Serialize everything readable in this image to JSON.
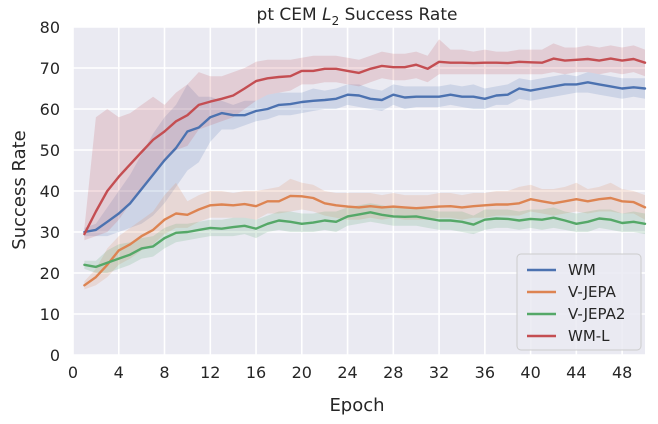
{
  "chart_data": {
    "type": "line",
    "title_prefix": "pt CEM ",
    "title_var": "L",
    "title_sub": "2",
    "title_suffix": " Success Rate",
    "xlabel": "Epoch",
    "ylabel": "Success Rate",
    "xlim": [
      0,
      50
    ],
    "ylim": [
      0,
      80
    ],
    "xticks": [
      0,
      4,
      8,
      12,
      16,
      20,
      24,
      28,
      32,
      36,
      40,
      44,
      48
    ],
    "yticks": [
      0,
      10,
      20,
      30,
      40,
      50,
      60,
      70,
      80
    ],
    "grid": true,
    "legend_position": "lower-right",
    "series": [
      {
        "name": "WM",
        "color": "#4c72b0",
        "x": [
          1,
          2,
          3,
          4,
          5,
          6,
          7,
          8,
          9,
          10,
          11,
          12,
          13,
          14,
          15,
          16,
          17,
          18,
          19,
          20,
          21,
          22,
          23,
          24,
          25,
          26,
          27,
          28,
          29,
          30,
          31,
          32,
          33,
          34,
          35,
          36,
          37,
          38,
          39,
          40,
          41,
          42,
          43,
          44,
          45,
          46,
          47,
          48,
          49,
          50
        ],
        "values": [
          30,
          30.5,
          32.5,
          34.5,
          37,
          40.5,
          44,
          47.5,
          50.5,
          54.5,
          55.5,
          58,
          59,
          58.5,
          58.5,
          59.5,
          60,
          61,
          61.2,
          61.7,
          62,
          62.2,
          62.5,
          63.5,
          63.3,
          62.5,
          62.2,
          63.5,
          62.8,
          63,
          63,
          63,
          63.5,
          63,
          63,
          62.5,
          63.3,
          63.5,
          65,
          64.5,
          65,
          65.5,
          66,
          66,
          66.5,
          66,
          65.5,
          65,
          65.3,
          65
        ],
        "lower": [
          29,
          29,
          29,
          30,
          31,
          32,
          34,
          37,
          41,
          45,
          47,
          52,
          55,
          55,
          56,
          57,
          57.5,
          58.5,
          58.5,
          59,
          59.5,
          60,
          60,
          61,
          60.5,
          60,
          59.5,
          61,
          60,
          60.5,
          60.5,
          60.5,
          61,
          60.5,
          60,
          60,
          61,
          61,
          62.5,
          62,
          62.5,
          63,
          63.5,
          64,
          64,
          63.5,
          63,
          62.5,
          63,
          62.5
        ],
        "upper": [
          31,
          32,
          36,
          40,
          44,
          49,
          54,
          58,
          61,
          66,
          63,
          63,
          62,
          61,
          62,
          62,
          63.5,
          64,
          64,
          64,
          65,
          64.5,
          65,
          66,
          66,
          65,
          64.5,
          66,
          65.5,
          65.5,
          65.5,
          65.5,
          66,
          65.5,
          66,
          65,
          65.5,
          66,
          67.5,
          67,
          67.5,
          68,
          68.5,
          68,
          69,
          68.5,
          68,
          67.5,
          67.5,
          67.5
        ]
      },
      {
        "name": "V-JEPA",
        "color": "#dd8452",
        "x": [
          1,
          2,
          3,
          4,
          5,
          6,
          7,
          8,
          9,
          10,
          11,
          12,
          13,
          14,
          15,
          16,
          17,
          18,
          19,
          20,
          21,
          22,
          23,
          24,
          25,
          26,
          27,
          28,
          29,
          30,
          31,
          32,
          33,
          34,
          35,
          36,
          37,
          38,
          39,
          40,
          41,
          42,
          43,
          44,
          45,
          46,
          47,
          48,
          49,
          50
        ],
        "values": [
          17,
          19,
          22,
          25.5,
          27,
          29,
          30.5,
          33,
          34.5,
          34.2,
          35.5,
          36.5,
          36.7,
          36.5,
          36.8,
          36.3,
          37.5,
          37.5,
          38.8,
          38.7,
          38.3,
          37,
          36.5,
          36.2,
          36,
          36.3,
          36,
          36.2,
          36,
          35.8,
          36,
          36.2,
          36.3,
          36,
          36.3,
          36.5,
          36.7,
          36.7,
          37,
          38,
          37.5,
          37,
          37.5,
          38,
          37.5,
          38,
          38.3,
          37.5,
          37.3,
          36
        ],
        "lower": [
          16,
          17,
          19,
          22,
          23.5,
          25.5,
          27,
          29.5,
          31,
          31,
          32.5,
          33.5,
          33.5,
          33.5,
          33.5,
          33,
          34.5,
          34.5,
          35,
          35.5,
          35,
          34,
          33.5,
          33,
          33,
          33.5,
          33,
          33.5,
          33,
          33,
          33,
          33.5,
          33.5,
          33,
          33.5,
          33.5,
          34,
          34,
          34,
          35,
          34.5,
          34,
          34.5,
          35,
          34.5,
          35,
          35,
          34.5,
          34.5,
          33
        ],
        "upper": [
          18,
          21,
          26,
          29,
          31,
          33,
          35,
          39,
          42,
          37.5,
          39,
          40,
          40,
          39.5,
          40,
          40,
          40.5,
          41,
          43,
          42,
          41.5,
          40,
          39.5,
          39.5,
          39.5,
          39.5,
          39,
          39.5,
          39,
          39,
          39,
          39.5,
          39.5,
          39,
          39.5,
          39.5,
          40,
          40,
          41,
          41.5,
          40.5,
          40.5,
          41,
          42,
          40.5,
          41,
          42,
          40.5,
          40,
          39
        ]
      },
      {
        "name": "V-JEPA2",
        "color": "#55a868",
        "x": [
          1,
          2,
          3,
          4,
          5,
          6,
          7,
          8,
          9,
          10,
          11,
          12,
          13,
          14,
          15,
          16,
          17,
          18,
          19,
          20,
          21,
          22,
          23,
          24,
          25,
          26,
          27,
          28,
          29,
          30,
          31,
          32,
          33,
          34,
          35,
          36,
          37,
          38,
          39,
          40,
          41,
          42,
          43,
          44,
          45,
          46,
          47,
          48,
          49,
          50
        ],
        "values": [
          22,
          21.5,
          22.5,
          23.5,
          24.5,
          26,
          26.5,
          28.5,
          29.8,
          30,
          30.5,
          31,
          30.8,
          31.2,
          31.5,
          30.8,
          32,
          32.8,
          32.5,
          32,
          32.3,
          32.8,
          32.5,
          33.8,
          34.3,
          34.8,
          34.2,
          33.8,
          33.7,
          33.8,
          33.3,
          32.8,
          32.8,
          32.5,
          31.8,
          33,
          33.3,
          33.2,
          32.8,
          33.2,
          33,
          33.5,
          32.8,
          32,
          32.5,
          33.3,
          33,
          32.2,
          32.5,
          32
        ],
        "lower": [
          21,
          20,
          20,
          21,
          22,
          23.5,
          24,
          26,
          27.5,
          28,
          28.5,
          29,
          29,
          29,
          29.5,
          28.5,
          30,
          30.5,
          30,
          30,
          30,
          30.5,
          30,
          31.5,
          32,
          32.5,
          32,
          31.5,
          31.5,
          31.5,
          31,
          30.5,
          30.5,
          30,
          29.5,
          30.5,
          31,
          31,
          30.5,
          31,
          30.5,
          31,
          30.5,
          30,
          30,
          31,
          30.5,
          30,
          30,
          29.5
        ],
        "upper": [
          23,
          23,
          25.5,
          27,
          27.5,
          28.5,
          29,
          31,
          32,
          32,
          32.5,
          33,
          33,
          33.5,
          33.5,
          33,
          34,
          35,
          35,
          34.5,
          34.5,
          35,
          35,
          36,
          36.5,
          37,
          36.5,
          36,
          36,
          36,
          35.5,
          35,
          35,
          35,
          34,
          35.5,
          35.5,
          35.5,
          35,
          35.5,
          35.5,
          36,
          35,
          34.5,
          35,
          35.5,
          35.5,
          34.5,
          35,
          34.5
        ]
      },
      {
        "name": "WM-L",
        "color": "#c44e52",
        "x": [
          1,
          2,
          3,
          4,
          5,
          6,
          7,
          8,
          9,
          10,
          11,
          12,
          13,
          14,
          15,
          16,
          17,
          18,
          19,
          20,
          21,
          22,
          23,
          24,
          25,
          26,
          27,
          28,
          29,
          30,
          31,
          32,
          33,
          34,
          35,
          36,
          37,
          38,
          39,
          40,
          41,
          42,
          43,
          44,
          45,
          46,
          47,
          48,
          49,
          50
        ],
        "values": [
          29.5,
          35,
          40,
          43.5,
          46.5,
          49.5,
          52.5,
          54.5,
          57,
          58.5,
          61,
          61.8,
          62.5,
          63.3,
          65,
          66.8,
          67.5,
          67.8,
          68,
          69.3,
          69.3,
          69.8,
          69.8,
          69.3,
          68.8,
          69.8,
          70.5,
          70.2,
          70.2,
          70.8,
          69.8,
          71.5,
          71.3,
          71.3,
          71.2,
          71.3,
          71.3,
          71.2,
          71.5,
          71.4,
          71.3,
          72.3,
          71.8,
          72,
          72.2,
          71.8,
          72.3,
          71.8,
          72.2,
          71.3
        ],
        "lower": [
          28,
          29,
          30,
          33,
          37,
          40,
          44,
          47,
          50,
          51,
          55,
          56,
          57,
          58,
          60,
          62,
          63.5,
          64,
          64.5,
          66,
          66,
          66.5,
          66.5,
          66,
          65.5,
          66.5,
          67.5,
          67,
          67,
          67.5,
          66.5,
          68.5,
          68.5,
          68.5,
          68.5,
          68.5,
          68.5,
          68.5,
          68.5,
          68.5,
          68.5,
          69,
          68.5,
          69,
          69,
          68.5,
          69,
          68.5,
          69,
          68
        ],
        "upper": [
          31,
          58,
          60,
          58,
          59,
          61,
          63,
          61,
          64,
          66,
          69,
          68,
          68,
          69,
          70,
          71.5,
          72,
          72,
          72,
          72.5,
          73,
          73,
          73,
          72.5,
          72,
          73,
          74,
          73.5,
          73.5,
          74,
          73,
          77,
          74.5,
          74.5,
          74,
          74.5,
          74,
          74,
          74.5,
          74.5,
          74.5,
          76,
          75,
          75,
          75.5,
          75,
          75.5,
          75,
          75.5,
          74.5
        ]
      }
    ]
  }
}
